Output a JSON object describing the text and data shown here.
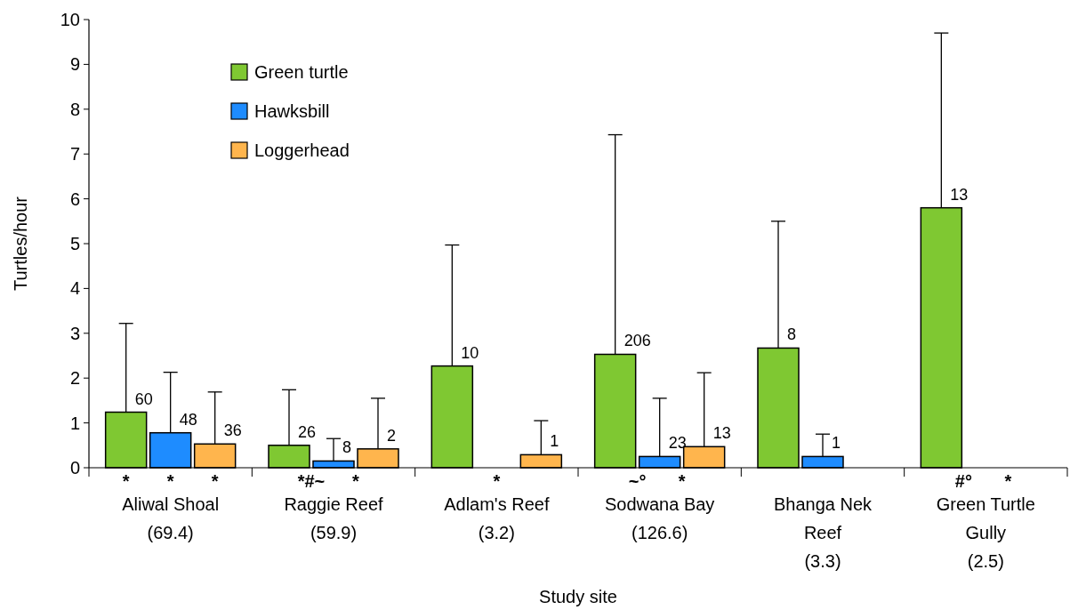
{
  "chart_data": {
    "type": "bar",
    "xlabel": "Study site",
    "ylabel": "Turtles/hour",
    "categories": [
      "Aliwal Shoal\n(69.4)",
      "Raggie Reef\n(59.9)",
      "Adlam's Reef\n(3.2)",
      "Sodwana Bay\n(126.6)",
      "Bhanga Nek\nReef\n(3.3)",
      "Green Turtle\nGully\n(2.5)"
    ],
    "series": [
      {
        "name": "Green turtle",
        "color": "#7fc832",
        "values": [
          1.24,
          0.5,
          2.27,
          2.53,
          2.67,
          5.8
        ],
        "errors": [
          [
            1.24,
            3.22
          ],
          [
            0.5,
            1.74
          ],
          [
            2.27,
            4.97
          ],
          [
            2.53,
            7.43
          ],
          [
            2.67,
            5.5
          ],
          [
            5.8,
            9.7
          ]
        ]
      },
      {
        "name": "Hawksbill",
        "color": "#1e8cff",
        "values": [
          0.78,
          0.15,
          0,
          0.25,
          0.25,
          0
        ],
        "errors": [
          [
            0.78,
            2.13
          ],
          [
            0.15,
            0.65
          ],
          null,
          [
            0.25,
            1.55
          ],
          [
            0.25,
            0.75
          ],
          null
        ]
      },
      {
        "name": "Loggerhead",
        "color": "#ffb54d",
        "values": [
          0.53,
          0.42,
          0.29,
          0.47,
          null,
          null
        ],
        "errors": [
          [
            0.53,
            1.69
          ],
          [
            0.42,
            1.55
          ],
          [
            0.29,
            1.05
          ],
          [
            0.47,
            2.12
          ],
          null,
          null
        ]
      }
    ],
    "ylim": [
      0,
      10
    ],
    "yticks": [
      0,
      1,
      2,
      3,
      4,
      5,
      6,
      7,
      8,
      9,
      10
    ],
    "grid": false,
    "legend": "top left",
    "annotations": [
      "60",
      "48",
      "36",
      "26",
      "8",
      "2",
      "10",
      "1",
      "206",
      "23",
      "13",
      "8",
      "1",
      "13",
      {
        "text": "*",
        "x": "Aliwal Shoal\n(69.4)",
        "y": 0
      },
      {
        "text": "*",
        "x": "Aliwal Shoal\n(69.4)",
        "y": 0
      },
      {
        "text": "*",
        "x": "Aliwal Shoal\n(69.4)",
        "y": 0
      },
      {
        "text": "*#~",
        "x": "Raggie Reef\n(59.9)",
        "y": 0
      },
      {
        "text": "*",
        "x": "Raggie Reef\n(59.9)",
        "y": 0
      },
      {
        "text": "*",
        "x": "Adlam's Reef\n(3.2)",
        "y": 0
      },
      {
        "text": "~°",
        "x": "Sodwana Bay\n(126.6)",
        "y": 0
      },
      {
        "text": "*",
        "x": "Sodwana Bay\n(126.6)",
        "y": 0
      },
      {
        "text": "#°",
        "x": "Green Turtle\nGully\n(2.5)",
        "y": 0
      },
      {
        "text": "*",
        "x": "Green Turtle\nGully\n(2.5)",
        "y": 0
      }
    ]
  }
}
